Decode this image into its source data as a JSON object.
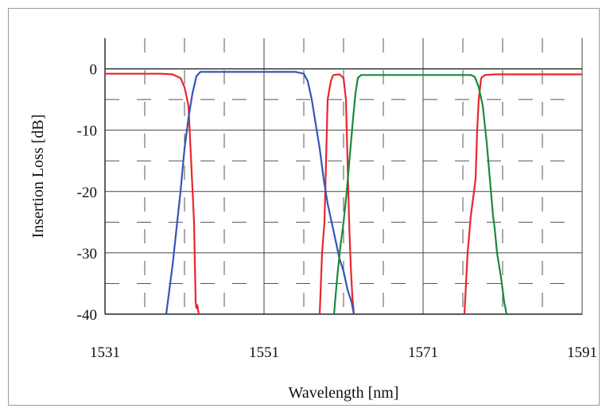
{
  "chart_data": {
    "type": "line",
    "title": "",
    "xlabel": "Wavelength [nm]",
    "ylabel": "Insertion Loss [dB]",
    "xlim": [
      1531,
      1591
    ],
    "ylim": [
      -40,
      5
    ],
    "x_ticks": [
      1531,
      1551,
      1571,
      1591
    ],
    "y_ticks": [
      0,
      -10,
      -20,
      -30,
      -40
    ],
    "x_tick_labels": [
      "1531",
      "1551",
      "1571",
      "1591"
    ],
    "y_tick_labels": [
      "0",
      "-10",
      "-20",
      "-30",
      "-40"
    ],
    "grid": true,
    "legend": "none",
    "series": [
      {
        "color": "#e8262e",
        "x": [
          1531,
          1538,
          1539.5,
          1540.5,
          1541,
          1541.5,
          1542.2,
          1542.4,
          1542.5,
          1542.6,
          1542.8,
          1542.9,
          1558,
          1558.3,
          1558.6,
          1559,
          1559.4,
          1559.7
        ],
        "y": [
          -0.8,
          -0.8,
          -0.9,
          -1.5,
          -3,
          -6,
          -25,
          -38,
          -39,
          -38.5,
          -40,
          null,
          -40,
          -30,
          -25,
          -5,
          -2,
          -1
        ]
      },
      {
        "color": "#e8262e",
        "x": [
          1559.7,
          1560.5,
          1561,
          1561.3,
          1561.5,
          1561.7,
          1561.9,
          1562.1,
          1562.3,
          null,
          1576.2,
          1576.6,
          1577,
          1577.4,
          1577.6,
          1577.8,
          1578,
          1578.3,
          1578.8,
          1580,
          1591
        ],
        "y": [
          -1,
          -0.9,
          -1.5,
          -5,
          -15,
          -25,
          -32,
          -37,
          -40,
          null,
          -40,
          -30,
          -24,
          -20,
          -18,
          -10,
          -5,
          -1.5,
          -1,
          -0.9,
          -0.9
        ]
      },
      {
        "color": "#3355bb",
        "x": [
          1538.7,
          1539.5,
          1540,
          1540.5,
          1541,
          1541.5,
          1542,
          1542.5,
          1543,
          1549,
          1555,
          1556,
          1556.5,
          1557,
          1557.5,
          1558,
          1558.5,
          1559,
          1559.5,
          1560,
          1560.5,
          1561,
          1561.5,
          1562,
          1562.3
        ],
        "y": [
          -40,
          -32,
          -26,
          -20,
          -13,
          -8,
          -4,
          -1.2,
          -0.5,
          -0.5,
          -0.5,
          -0.8,
          -2,
          -5,
          -9,
          -13,
          -18,
          -22,
          -25,
          -28,
          -31,
          -33,
          -36,
          -38,
          -40
        ]
      },
      {
        "color": "#1a8a3a",
        "x": [
          1559.8,
          1560.2,
          1560.6,
          1561,
          1561.4,
          1561.8,
          1562.2,
          1562.5,
          1562.8,
          1563.2,
          1571,
          1577,
          1577.5,
          1578,
          1578.5,
          1579,
          1579.4,
          1579.8,
          1580,
          1580.3,
          1580.8,
          1581.2,
          1581.5
        ],
        "y": [
          -40,
          -34,
          -29,
          -25,
          -20,
          -14,
          -8,
          -4,
          -1.5,
          -1,
          -1,
          -1,
          -1.3,
          -3,
          -6,
          -12,
          -18,
          -24,
          -26,
          -30,
          -34,
          -38,
          -40
        ]
      }
    ]
  }
}
